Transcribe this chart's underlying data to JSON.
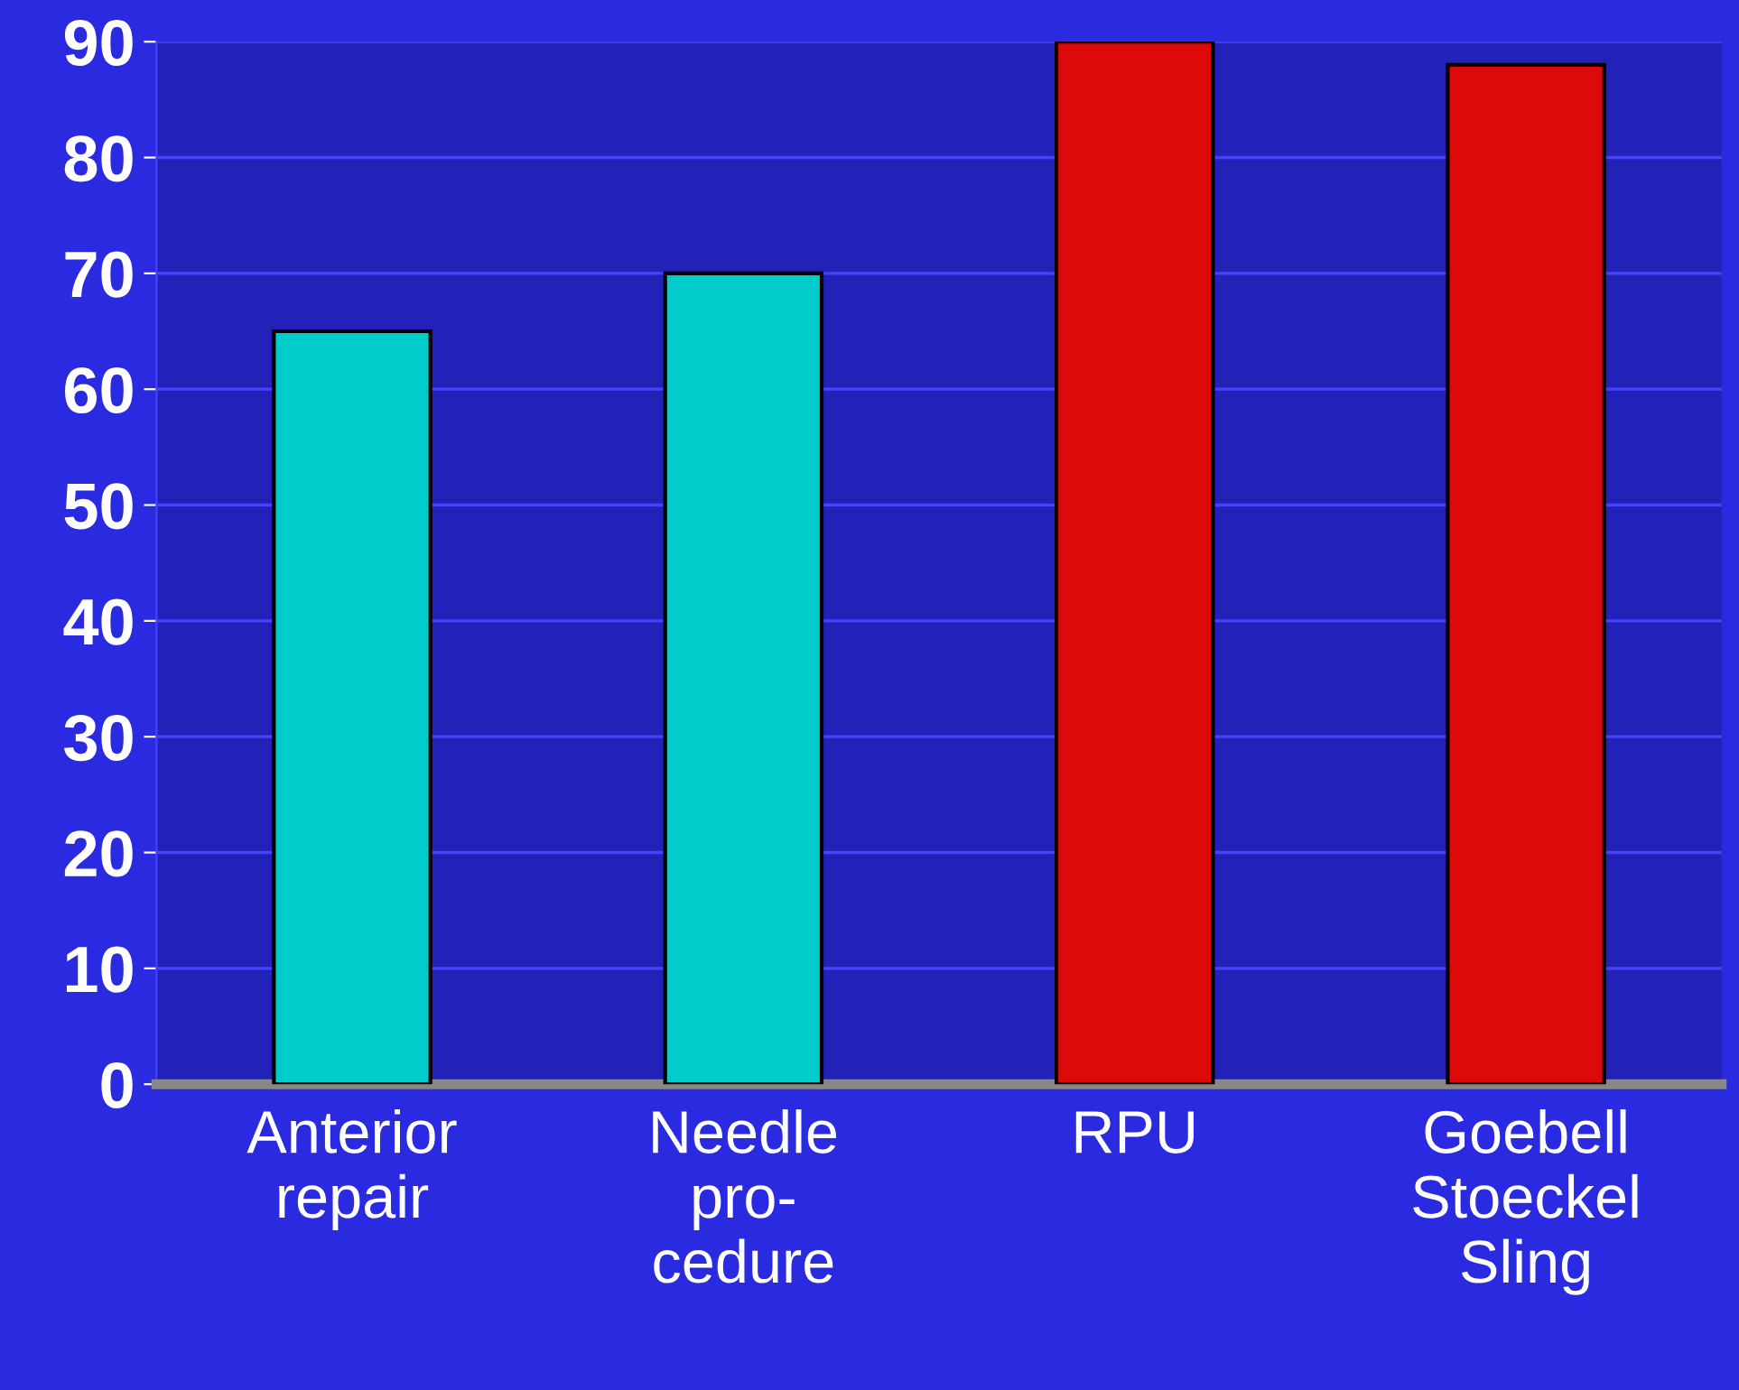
{
  "chart_data": {
    "type": "bar",
    "categories": [
      "Anterior\nrepair",
      "Needle\npro-\ncedure",
      "RPU",
      "Goebell\nStoeckel\nSling"
    ],
    "values": [
      65,
      70,
      90,
      88
    ],
    "colors": [
      "#00cccc",
      "#00cccc",
      "#dd0a0a",
      "#dd0a0a"
    ],
    "ylim": [
      0,
      90
    ],
    "yticks": [
      0,
      10,
      20,
      30,
      40,
      50,
      60,
      70,
      80,
      90
    ],
    "grid": "y"
  }
}
